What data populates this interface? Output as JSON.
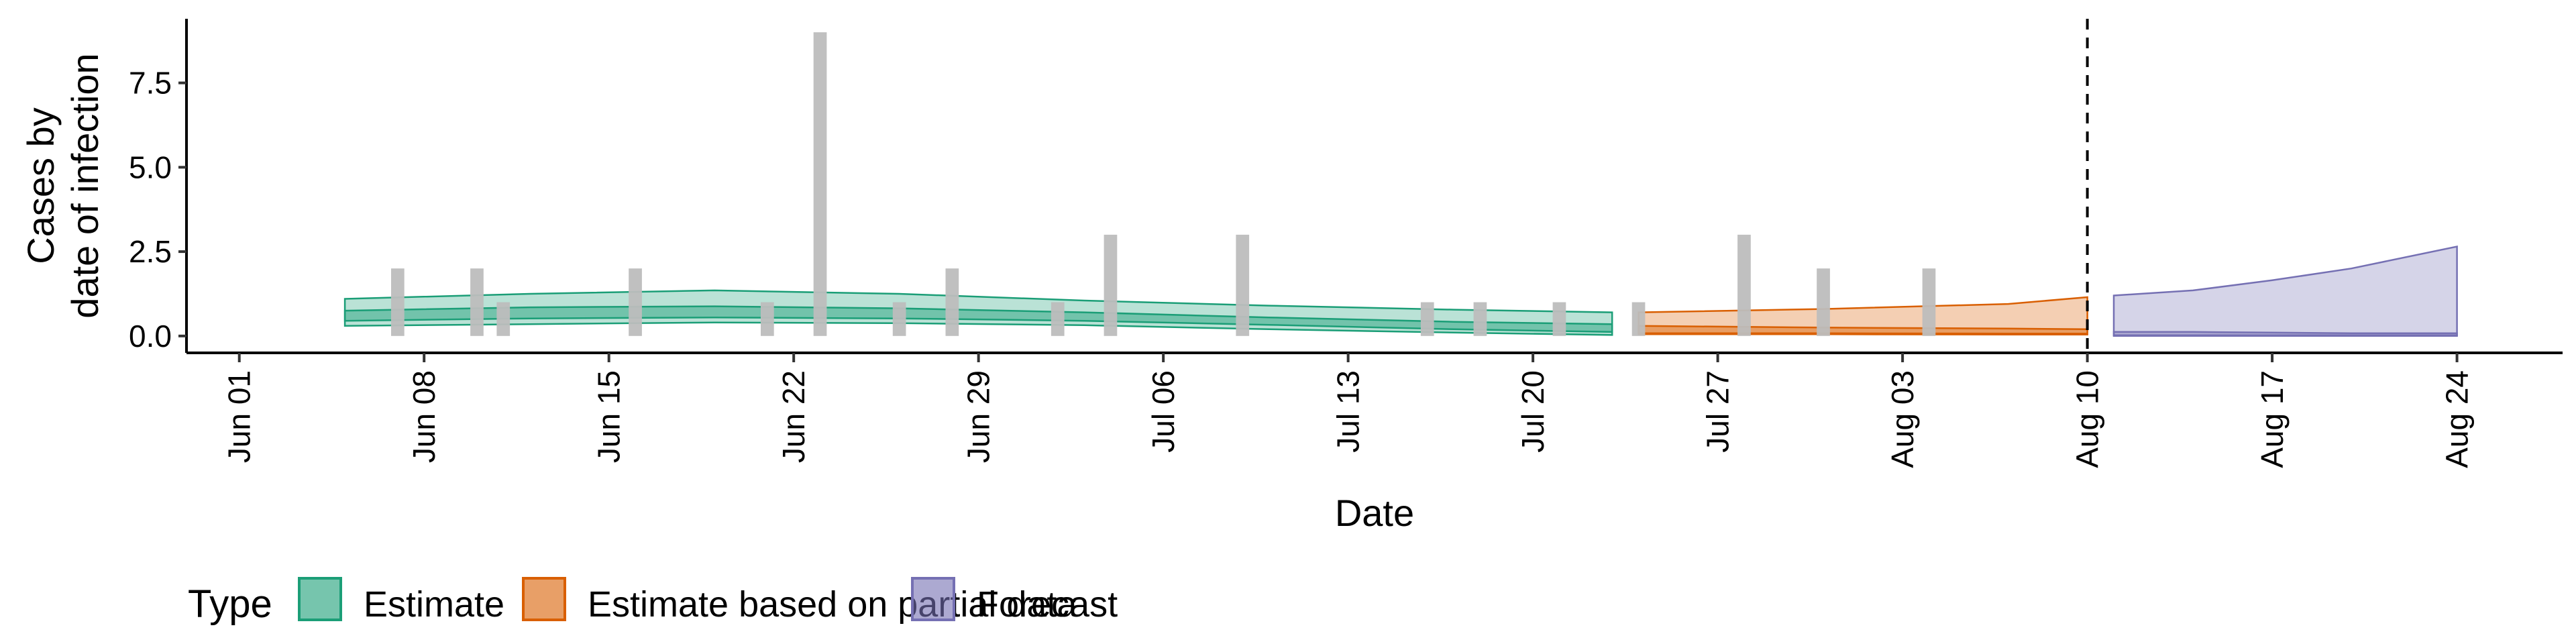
{
  "chart_data": {
    "type": "area",
    "xlabel": "Date",
    "ylabel": [
      "Cases by",
      "date of infection"
    ],
    "x_range": [
      "2020-05-30",
      "2020-08-28"
    ],
    "ylim": [
      -0.5,
      9.4
    ],
    "y_ticks": [
      0.0,
      2.5,
      5.0,
      7.5
    ],
    "y_tick_labels": [
      "0.0",
      "2.5",
      "5.0",
      "7.5"
    ],
    "x_ticks": [
      "2020-06-01",
      "2020-06-08",
      "2020-06-15",
      "2020-06-22",
      "2020-06-29",
      "2020-07-06",
      "2020-07-13",
      "2020-07-20",
      "2020-07-27",
      "2020-08-03",
      "2020-08-10",
      "2020-08-17",
      "2020-08-24"
    ],
    "x_tick_labels": [
      "Jun 01",
      "Jun 08",
      "Jun 15",
      "Jun 22",
      "Jun 29",
      "Jul 06",
      "Jul 13",
      "Jul 20",
      "Jul 27",
      "Aug 03",
      "Aug 10",
      "Aug 17",
      "Aug 24"
    ],
    "vline_date": "2020-08-10",
    "grid": false,
    "legend_position": "bottom-left",
    "legend_title": "Type",
    "colors": {
      "estimate": "#1b9e77",
      "partial": "#d95f02",
      "forecast": "#7570b3",
      "bars": "#bdbdbd"
    },
    "observed_cases": [
      {
        "date": "2020-06-07",
        "value": 2
      },
      {
        "date": "2020-06-10",
        "value": 2
      },
      {
        "date": "2020-06-11",
        "value": 1
      },
      {
        "date": "2020-06-16",
        "value": 2
      },
      {
        "date": "2020-06-21",
        "value": 1
      },
      {
        "date": "2020-06-23",
        "value": 9
      },
      {
        "date": "2020-06-26",
        "value": 1
      },
      {
        "date": "2020-06-28",
        "value": 2
      },
      {
        "date": "2020-07-02",
        "value": 1
      },
      {
        "date": "2020-07-04",
        "value": 3
      },
      {
        "date": "2020-07-09",
        "value": 3
      },
      {
        "date": "2020-07-16",
        "value": 1
      },
      {
        "date": "2020-07-18",
        "value": 1
      },
      {
        "date": "2020-07-21",
        "value": 1
      },
      {
        "date": "2020-07-24",
        "value": 1
      },
      {
        "date": "2020-07-28",
        "value": 3
      },
      {
        "date": "2020-07-31",
        "value": 2
      },
      {
        "date": "2020-08-04",
        "value": 2
      }
    ],
    "series": [
      {
        "name": "Estimate",
        "key": "estimate",
        "x": [
          "2020-06-05",
          "2020-06-12",
          "2020-06-19",
          "2020-06-26",
          "2020-07-03",
          "2020-07-10",
          "2020-07-17",
          "2020-07-23"
        ],
        "lower90": [
          0.3,
          0.35,
          0.4,
          0.38,
          0.32,
          0.2,
          0.1,
          0.03
        ],
        "upper90": [
          1.1,
          1.25,
          1.35,
          1.25,
          1.05,
          0.9,
          0.78,
          0.7
        ],
        "lower50": [
          0.45,
          0.52,
          0.55,
          0.52,
          0.45,
          0.33,
          0.2,
          0.12
        ],
        "upper50": [
          0.75,
          0.85,
          0.88,
          0.82,
          0.7,
          0.55,
          0.42,
          0.35
        ]
      },
      {
        "name": "Estimate based on partial data",
        "key": "partial",
        "x": [
          "2020-07-24",
          "2020-07-31",
          "2020-08-07",
          "2020-08-10"
        ],
        "lower90": [
          0.05,
          0.05,
          0.04,
          0.04
        ],
        "upper90": [
          0.7,
          0.8,
          0.95,
          1.15
        ],
        "lower50": [
          0.08,
          0.08,
          0.07,
          0.07
        ],
        "upper50": [
          0.3,
          0.25,
          0.22,
          0.2
        ]
      },
      {
        "name": "Forecast",
        "key": "forecast",
        "x": [
          "2020-08-11",
          "2020-08-14",
          "2020-08-17",
          "2020-08-20",
          "2020-08-24"
        ],
        "lower90": [
          0.0,
          0.0,
          0.0,
          0.0,
          0.0
        ],
        "upper90": [
          1.2,
          1.35,
          1.65,
          2.0,
          2.65
        ],
        "lower50": [
          0.02,
          0.02,
          0.02,
          0.02,
          0.02
        ],
        "upper50": [
          0.12,
          0.12,
          0.1,
          0.08,
          0.08
        ]
      }
    ]
  }
}
